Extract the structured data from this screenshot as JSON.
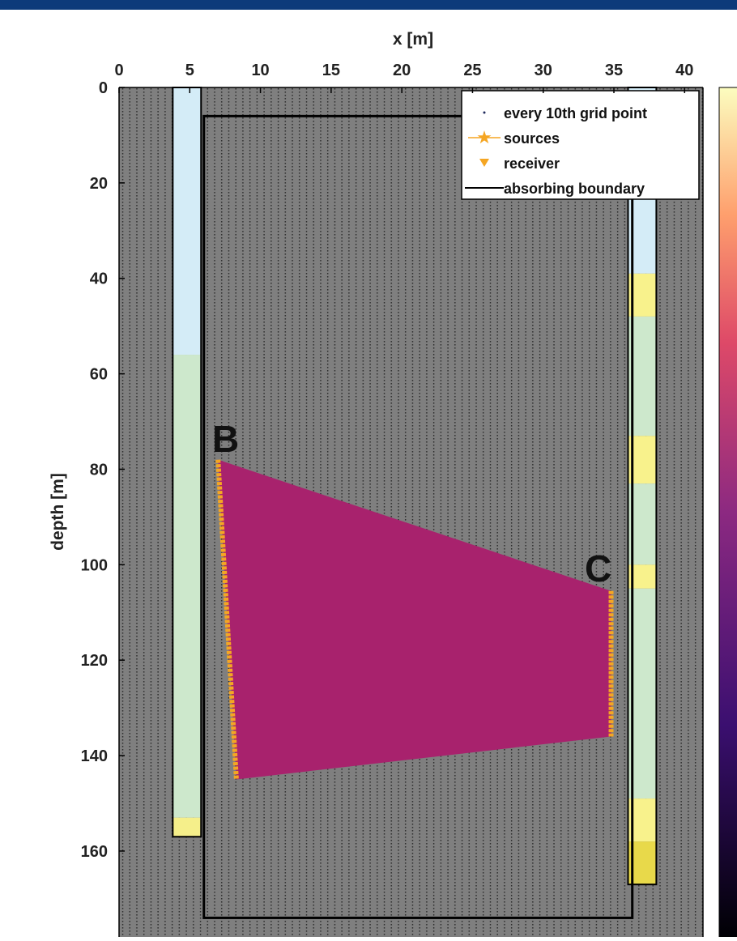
{
  "chart_data": {
    "type": "survey",
    "xlabel": "x [m]",
    "ylabel": "depth [m]",
    "xlim": [
      0,
      41.3
    ],
    "ylim": [
      0,
      178
    ],
    "xticks": [
      0,
      5,
      10,
      15,
      20,
      25,
      30,
      35,
      40
    ],
    "yticks": [
      0,
      20,
      40,
      60,
      80,
      100,
      120,
      140,
      160
    ],
    "background": "#7f7f7f",
    "grid_dot_color": "#2b2b2b",
    "region_color": "#a8226d",
    "legend_position": "upper right",
    "series": [
      {
        "name": "every 10th grid point",
        "color": "#1f2a5c",
        "marker": "dot"
      },
      {
        "name": "sources",
        "color": "#f5a623",
        "marker": "star",
        "x": [
          7,
          8.3
        ],
        "y": [
          78,
          145
        ]
      },
      {
        "name": "receiver",
        "color": "#f5a623",
        "marker": "triangle",
        "x": [
          34.8,
          34.8
        ],
        "y": [
          105.5,
          136
        ]
      },
      {
        "name": "absorbing boundary",
        "color": "#000000",
        "marker": "line",
        "x": [
          6,
          36.3
        ],
        "y": [
          6,
          174
        ]
      }
    ],
    "boreholes": [
      {
        "x": [
          3.8,
          5.8
        ],
        "layers": [
          {
            "top": 0,
            "bottom": 56,
            "color": "#d4ecf7"
          },
          {
            "top": 56,
            "bottom": 153,
            "color": "#cde8cc"
          },
          {
            "top": 153,
            "bottom": 157,
            "color": "#f5ef8a"
          }
        ]
      },
      {
        "x": [
          36,
          38
        ],
        "layers": [
          {
            "top": 0,
            "bottom": 39,
            "color": "#d4ecf7"
          },
          {
            "top": 39,
            "bottom": 48,
            "color": "#f8f28c"
          },
          {
            "top": 48,
            "bottom": 73,
            "color": "#cde8cc"
          },
          {
            "top": 73,
            "bottom": 83,
            "color": "#f8f28c"
          },
          {
            "top": 83,
            "bottom": 100,
            "color": "#cde8cc"
          },
          {
            "top": 100,
            "bottom": 105,
            "color": "#f8f28c"
          },
          {
            "top": 105,
            "bottom": 149,
            "color": "#cde8cc"
          },
          {
            "top": 149,
            "bottom": 158,
            "color": "#f8f28c"
          },
          {
            "top": 158,
            "bottom": 167,
            "color": "#e8d94a"
          }
        ]
      }
    ],
    "annotations": [
      "B",
      "C"
    ]
  }
}
